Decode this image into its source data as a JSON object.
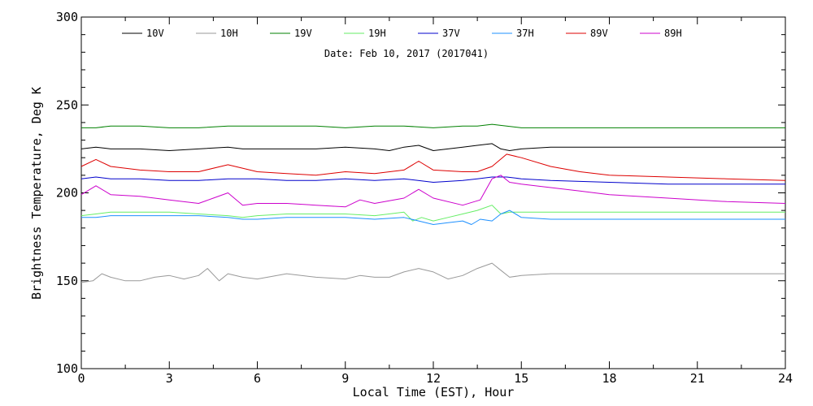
{
  "chart_data": {
    "type": "line",
    "title": "",
    "subtitle": "Date: Feb 10, 2017 (2017041)",
    "xlabel": "Local Time (EST), Hour",
    "ylabel": "Brightness Temperature, Deg K",
    "xlim": [
      0,
      24
    ],
    "ylim": [
      100,
      300
    ],
    "x_ticks": [
      0,
      3,
      6,
      9,
      12,
      15,
      18,
      21,
      24
    ],
    "x_tick_labels": [
      "0",
      "3",
      "6",
      "9",
      "12",
      "15",
      "18",
      "21",
      "24"
    ],
    "y_ticks": [
      100,
      150,
      200,
      250,
      300
    ],
    "y_tick_labels": [
      "100",
      "150",
      "200",
      "250",
      "300"
    ],
    "grid": false,
    "legend_position": "top",
    "series": [
      {
        "name": "10V",
        "color": "#000000",
        "x": [
          0,
          0.5,
          1,
          2,
          3,
          4,
          5,
          5.5,
          6,
          7,
          8,
          9,
          10,
          10.5,
          11,
          11.5,
          12,
          13,
          13.5,
          14,
          14.3,
          14.6,
          15,
          16,
          18,
          20,
          22,
          24
        ],
        "y": [
          225,
          226,
          225,
          225,
          224,
          225,
          226,
          225,
          225,
          225,
          225,
          226,
          225,
          224,
          226,
          227,
          224,
          226,
          227,
          228,
          225,
          224,
          225,
          226,
          226,
          226,
          226,
          226
        ]
      },
      {
        "name": "10H",
        "color": "#999999",
        "x": [
          0,
          0.4,
          0.7,
          1,
          1.5,
          2,
          2.5,
          3,
          3.5,
          4,
          4.3,
          4.7,
          5,
          5.5,
          6,
          7,
          8,
          9,
          9.5,
          10,
          10.5,
          11,
          11.5,
          12,
          12.5,
          13,
          13.5,
          14,
          14.3,
          14.6,
          15,
          16,
          18,
          20,
          22,
          24
        ],
        "y": [
          149,
          150,
          154,
          152,
          150,
          150,
          152,
          153,
          151,
          153,
          157,
          150,
          154,
          152,
          151,
          154,
          152,
          151,
          153,
          152,
          152,
          155,
          157,
          155,
          151,
          153,
          157,
          160,
          156,
          152,
          153,
          154,
          154,
          154,
          154,
          154
        ]
      },
      {
        "name": "19V",
        "color": "#008000",
        "x": [
          0,
          0.5,
          1,
          2,
          3,
          4,
          5,
          6,
          7,
          8,
          9,
          10,
          11,
          12,
          13,
          13.5,
          14,
          14.5,
          15,
          16,
          18,
          20,
          22,
          24
        ],
        "y": [
          237,
          237,
          238,
          238,
          237,
          237,
          238,
          238,
          238,
          238,
          237,
          238,
          238,
          237,
          238,
          238,
          239,
          238,
          237,
          237,
          237,
          237,
          237,
          237
        ]
      },
      {
        "name": "19H",
        "color": "#66ee66",
        "x": [
          0,
          0.5,
          1,
          2,
          3,
          4,
          5,
          5.5,
          6,
          7,
          8,
          9,
          10,
          11,
          11.3,
          11.6,
          12,
          12.5,
          13,
          13.5,
          14,
          14.3,
          14.6,
          15,
          16,
          18,
          20,
          22,
          24
        ],
        "y": [
          187,
          188,
          189,
          189,
          189,
          188,
          187,
          186,
          187,
          188,
          188,
          188,
          187,
          189,
          184,
          186,
          184,
          186,
          188,
          190,
          193,
          188,
          189,
          189,
          189,
          189,
          189,
          189,
          189
        ]
      },
      {
        "name": "37V",
        "color": "#0000cc",
        "x": [
          0,
          0.5,
          1,
          2,
          3,
          4,
          5,
          6,
          7,
          8,
          9,
          10,
          11,
          12,
          13,
          13.5,
          14,
          14.5,
          15,
          16,
          18,
          20,
          22,
          24
        ],
        "y": [
          208,
          209,
          208,
          208,
          207,
          207,
          208,
          208,
          207,
          207,
          208,
          207,
          208,
          206,
          207,
          208,
          209,
          209,
          208,
          207,
          206,
          205,
          205,
          205
        ]
      },
      {
        "name": "37H",
        "color": "#1e90ff",
        "x": [
          0,
          0.5,
          1,
          2,
          3,
          4,
          5,
          5.5,
          6,
          7,
          8,
          9,
          10,
          11,
          11.5,
          12,
          12.5,
          13,
          13.3,
          13.6,
          14,
          14.3,
          14.6,
          15,
          16,
          18,
          20,
          22,
          24
        ],
        "y": [
          186,
          186,
          187,
          187,
          187,
          187,
          186,
          185,
          185,
          186,
          186,
          186,
          185,
          186,
          184,
          182,
          183,
          184,
          182,
          185,
          184,
          188,
          190,
          186,
          185,
          185,
          185,
          185,
          185
        ]
      },
      {
        "name": "89V",
        "color": "#dd0000",
        "x": [
          0,
          0.5,
          1,
          2,
          3,
          4,
          5,
          6,
          7,
          8,
          9,
          10,
          11,
          11.5,
          12,
          13,
          13.5,
          14,
          14.5,
          15,
          16,
          17,
          18,
          20,
          22,
          24
        ],
        "y": [
          215,
          219,
          215,
          213,
          212,
          212,
          216,
          212,
          211,
          210,
          212,
          211,
          213,
          218,
          213,
          212,
          212,
          215,
          222,
          220,
          215,
          212,
          210,
          209,
          208,
          207
        ]
      },
      {
        "name": "89H",
        "color": "#cc00cc",
        "x": [
          0,
          0.5,
          1,
          2,
          3,
          4,
          4.5,
          5,
          5.5,
          6,
          7,
          8,
          9,
          9.5,
          10,
          11,
          11.5,
          12,
          13,
          13.6,
          14,
          14.3,
          14.6,
          15,
          16,
          17,
          18,
          20,
          22,
          24
        ],
        "y": [
          199,
          204,
          199,
          198,
          196,
          194,
          197,
          200,
          193,
          194,
          194,
          193,
          192,
          196,
          194,
          197,
          202,
          197,
          193,
          196,
          208,
          210,
          206,
          205,
          203,
          201,
          199,
          197,
          195,
          194
        ]
      }
    ]
  }
}
